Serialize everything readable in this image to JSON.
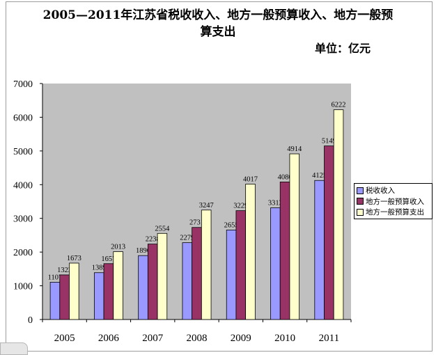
{
  "title_line1": "2005—2011年江苏省税收收入、地方一般预算收入、地方一般预",
  "title_line2": "算支出",
  "unit_label": "单位：亿元",
  "colors": {
    "plot_bg": "#c0c0c0",
    "series": [
      "#9999ff",
      "#993366",
      "#ffffcc"
    ]
  },
  "chart_data": {
    "type": "bar",
    "title": "2005—2011年江苏省税收收入、地方一般预算收入、地方一般预算支出",
    "categories": [
      "2005",
      "2006",
      "2007",
      "2008",
      "2009",
      "2010",
      "2011"
    ],
    "series": [
      {
        "name": "税收收入",
        "values": [
          1107,
          1389,
          1896,
          2279,
          2655,
          3313,
          4125
        ]
      },
      {
        "name": "地方一般预算收入",
        "values": [
          1323,
          1657,
          2238,
          2731,
          3229,
          4080,
          5149
        ]
      },
      {
        "name": "地方一般预算支出",
        "values": [
          1673,
          2013,
          2554,
          3247,
          4017,
          4914,
          6222
        ]
      }
    ],
    "ylim": [
      0,
      7000
    ],
    "yticks": [
      0,
      1000,
      2000,
      3000,
      4000,
      5000,
      6000,
      7000
    ],
    "grid": false,
    "legend": "right"
  }
}
